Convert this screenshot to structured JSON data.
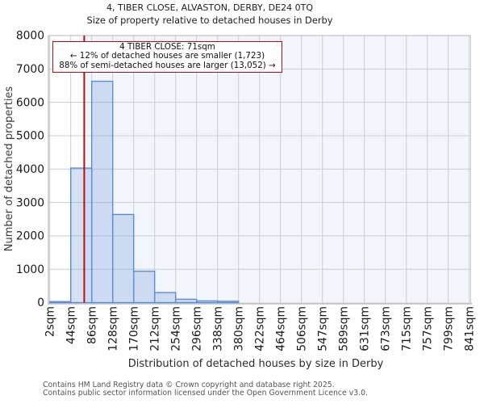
{
  "chart_data": {
    "type": "bar",
    "title": "4, TIBER CLOSE, ALVASTON, DERBY, DE24 0TQ",
    "subtitle": "Size of property relative to detached houses in Derby",
    "xlabel": "Distribution of detached houses by size in Derby",
    "ylabel": "Number of detached properties",
    "ylim": [
      0,
      8000
    ],
    "ytick_step": 1000,
    "ytick_labels": [
      "0",
      "1000",
      "2000",
      "3000",
      "4000",
      "5000",
      "6000",
      "7000",
      "8000"
    ],
    "xtick_labels": [
      "2sqm",
      "44sqm",
      "86sqm",
      "128sqm",
      "170sqm",
      "212sqm",
      "254sqm",
      "296sqm",
      "338sqm",
      "380sqm",
      "422sqm",
      "464sqm",
      "506sqm",
      "547sqm",
      "589sqm",
      "631sqm",
      "673sqm",
      "715sqm",
      "757sqm",
      "799sqm",
      "841sqm"
    ],
    "bin_start_sqm": [
      2,
      44,
      86,
      128,
      170,
      212,
      254,
      296,
      338,
      380,
      422,
      464,
      506,
      547,
      589,
      631,
      673,
      715,
      757,
      799
    ],
    "values": [
      30,
      4030,
      6630,
      2640,
      940,
      300,
      100,
      50,
      40,
      0,
      0,
      0,
      0,
      0,
      0,
      0,
      0,
      0,
      0,
      0
    ],
    "grid": true,
    "legend": null,
    "marker": {
      "sqm": 71,
      "line_color": "#b90d0e"
    },
    "annotation": {
      "lines": [
        "4 TIBER CLOSE: 71sqm",
        "← 12% of detached houses are smaller (1,723)",
        "88% of semi-detached houses are larger (13,052) →"
      ],
      "border_color": "#b90d0e"
    }
  },
  "colors": {
    "bar_fill": "#6b96d6",
    "bar_fill_opacity": 0.28,
    "bar_border": "#5b8ed6",
    "marker_red": "#b90d0e",
    "grid_line": "#c9ccd4",
    "right_tint": "#f2f6fc",
    "axis_spine": "#b6b6ba",
    "bottom_spine": "#c2c2c6",
    "text_dark": "#1a1a1a",
    "text_gray": "#545456"
  },
  "footer": {
    "lines": [
      "Contains HM Land Registry data © Crown copyright and database right 2025.",
      "Contains public sector information licensed under the Open Government Licence v3.0."
    ]
  }
}
